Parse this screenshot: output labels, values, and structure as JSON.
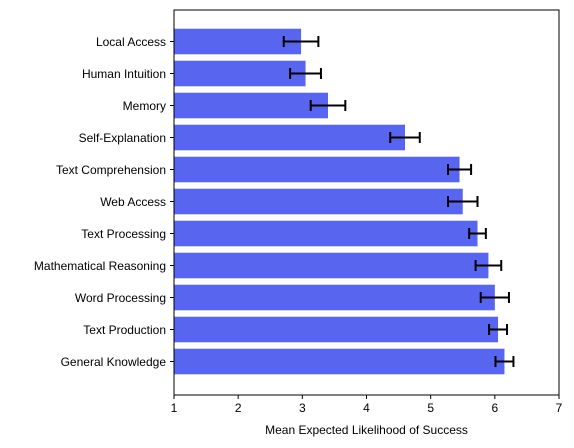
{
  "chart_data": {
    "type": "bar",
    "orientation": "horizontal",
    "title": "",
    "xlabel": "Mean Expected Likelihood of Success",
    "ylabel": "",
    "xlim": [
      1,
      7
    ],
    "xticks": [
      1,
      2,
      3,
      4,
      5,
      6,
      7
    ],
    "grid": false,
    "legend": "none",
    "bar_color": "#5865ee",
    "error_color": "#000000",
    "categories": [
      "Local Access",
      "Human Intuition",
      "Memory",
      "Self-Explanation",
      "Text Comprehension",
      "Web Access",
      "Text Processing",
      "Mathematical Reasoning",
      "Word Processing",
      "Text Production",
      "General Knowledge"
    ],
    "values": [
      2.98,
      3.05,
      3.4,
      4.6,
      5.45,
      5.5,
      5.73,
      5.9,
      6.0,
      6.05,
      6.15
    ],
    "errors": [
      0.27,
      0.24,
      0.27,
      0.23,
      0.18,
      0.23,
      0.13,
      0.2,
      0.22,
      0.14,
      0.14
    ]
  }
}
